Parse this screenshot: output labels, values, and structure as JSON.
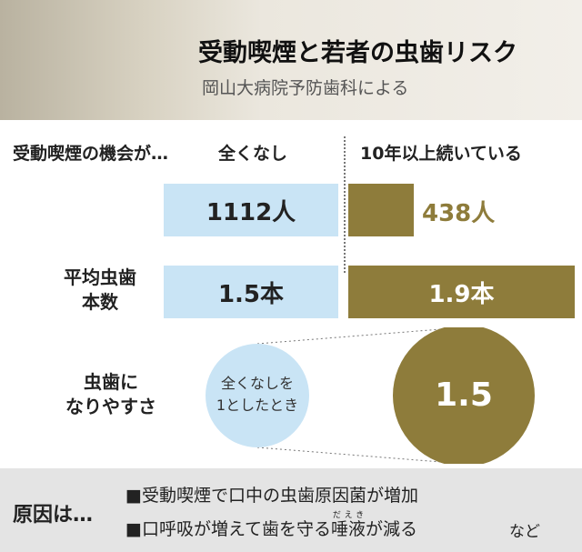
{
  "header": {
    "title": "受動喫煙と若者の虫歯リスク",
    "subtitle": "岡山大病院予防歯科による"
  },
  "columns": {
    "label": "受動喫煙の機会が…",
    "none": "全くなし",
    "long": "10年以上続いている"
  },
  "rows": [
    {
      "none": "1112人",
      "long": "438人"
    },
    {
      "label": [
        "平均虫歯",
        "本数"
      ],
      "none": "1.5本",
      "long": "1.9本"
    },
    {
      "label": [
        "虫歯に",
        "なりやすさ"
      ],
      "none": [
        "全くなしを",
        "1としたとき"
      ],
      "long": "1.5"
    }
  ],
  "causes": {
    "title": "原因は…",
    "items": [
      "■受動喫煙で口中の虫歯原因菌が増加",
      {
        "before": "■口呼吸が増えて歯を守る",
        "ruby_base": "唾液",
        "ruby": "だえき",
        "after": "が減る"
      }
    ],
    "suffix": "など"
  }
}
